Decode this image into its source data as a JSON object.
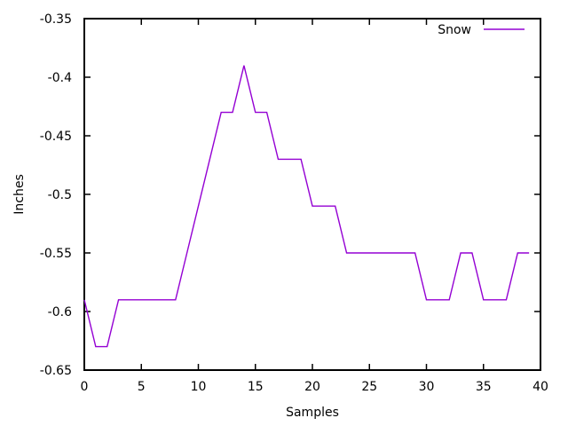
{
  "window": {
    "background": "#ffffff",
    "text_color": "#000000",
    "border_color": "#000000"
  },
  "chart_data": {
    "type": "line",
    "title": "",
    "xlabel": "Samples",
    "ylabel": "Inches",
    "xlim": [
      0,
      40
    ],
    "ylim": [
      -0.65,
      -0.35
    ],
    "grid": false,
    "legend_position": "top-right-inside",
    "x_ticks": [
      0,
      5,
      10,
      15,
      20,
      25,
      30,
      35,
      40
    ],
    "x_tick_labels": [
      "0",
      "5",
      "10",
      "15",
      "20",
      "25",
      "30",
      "35",
      "40"
    ],
    "y_ticks": [
      -0.65,
      -0.6,
      -0.55,
      -0.5,
      -0.45,
      -0.4,
      -0.35
    ],
    "y_tick_labels": [
      "-0.65",
      "-0.6",
      "-0.55",
      "-0.5",
      "-0.45",
      "-0.4",
      "-0.35"
    ],
    "x": [
      0,
      1,
      2,
      3,
      4,
      5,
      6,
      7,
      8,
      9,
      10,
      11,
      12,
      13,
      14,
      15,
      16,
      17,
      18,
      19,
      20,
      21,
      22,
      23,
      24,
      25,
      26,
      27,
      28,
      29,
      30,
      31,
      32,
      33,
      34,
      35,
      36,
      37,
      38,
      39
    ],
    "series": [
      {
        "name": "Snow",
        "color": "#9400d3",
        "values": [
          -0.59,
          -0.63,
          -0.63,
          -0.59,
          -0.59,
          -0.59,
          -0.59,
          -0.59,
          -0.59,
          -0.55,
          -0.51,
          -0.47,
          -0.43,
          -0.43,
          -0.39,
          -0.43,
          -0.43,
          -0.47,
          -0.47,
          -0.47,
          -0.51,
          -0.51,
          -0.51,
          -0.55,
          -0.55,
          -0.55,
          -0.55,
          -0.55,
          -0.55,
          -0.55,
          -0.59,
          -0.59,
          -0.59,
          -0.55,
          -0.55,
          -0.59,
          -0.59,
          -0.59,
          -0.55,
          -0.55
        ]
      }
    ]
  }
}
